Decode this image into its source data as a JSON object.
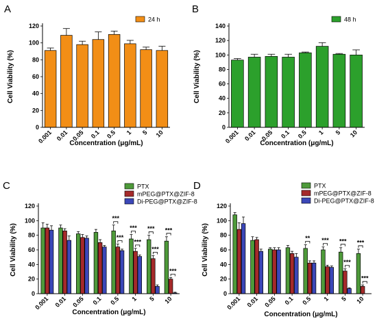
{
  "chart_data": [
    {
      "panel": "A",
      "type": "bar",
      "ylabel": "Cell Viability (%)",
      "xlabel": "Concentration (μg/mL)",
      "ylim": [
        0,
        120
      ],
      "yticks": [
        0,
        20,
        40,
        60,
        80,
        100,
        120
      ],
      "categories": [
        "0.001",
        "0.01",
        "0.05",
        "0.1",
        "0.5",
        "1",
        "5",
        "10"
      ],
      "series": [
        {
          "name": "24 h",
          "color": "#F28E16",
          "values": [
            91,
            109,
            98,
            104,
            110,
            99,
            92,
            91
          ],
          "errors": [
            3,
            8,
            4,
            9,
            4,
            4,
            3,
            5
          ]
        }
      ],
      "legend_position": "top-right",
      "significance": []
    },
    {
      "panel": "B",
      "type": "bar",
      "ylabel": "Cell Viability (%)",
      "xlabel": "Concentration (μg/mL)",
      "ylim": [
        0,
        140
      ],
      "yticks": [
        0,
        20,
        40,
        60,
        80,
        100,
        120,
        140
      ],
      "categories": [
        "0.001",
        "0.01",
        "0.05",
        "0.1",
        "0.5",
        "1",
        "5",
        "10"
      ],
      "series": [
        {
          "name": "48 h",
          "color": "#2CA02C",
          "values": [
            93,
            97,
            98,
            97,
            103,
            112,
            101,
            100
          ],
          "errors": [
            2,
            4,
            3,
            4,
            1,
            5,
            1,
            7
          ]
        }
      ],
      "legend_position": "top-right",
      "significance": []
    },
    {
      "panel": "C",
      "type": "bar",
      "ylabel": "Cell Viability (%)",
      "xlabel": "Concentration (μg/mL)",
      "ylim": [
        0,
        120
      ],
      "yticks": [
        0,
        20,
        40,
        60,
        80,
        100,
        120
      ],
      "categories": [
        "0.001",
        "0.01",
        "0.05",
        "0.1",
        "0.5",
        "1",
        "5",
        "10"
      ],
      "series": [
        {
          "name": "PTX",
          "color": "#4E9A3A",
          "values": [
            90,
            90,
            82,
            84,
            86,
            75,
            74,
            72
          ],
          "errors": [
            7,
            4,
            3,
            4,
            8,
            6,
            6,
            6
          ]
        },
        {
          "name": "mPEG@PTX@ZIF-8",
          "color": "#A52A2A",
          "values": [
            90,
            86,
            77,
            70,
            64,
            58,
            48,
            20
          ],
          "errors": [
            5,
            3,
            4,
            4,
            4,
            4,
            4,
            2
          ]
        },
        {
          "name": "Di-PEG@PTX@ZIF-8",
          "color": "#3B47B8",
          "values": [
            87,
            73,
            76,
            64,
            59,
            51,
            10,
            1
          ],
          "errors": [
            6,
            6,
            3,
            2,
            2,
            2,
            2,
            1
          ]
        }
      ],
      "legend_position": "top-right",
      "significance": [
        {
          "category": 4,
          "from": 0,
          "to": 1,
          "label": "***"
        },
        {
          "category": 4,
          "from": 1,
          "to": 2,
          "label": "***"
        },
        {
          "category": 5,
          "from": 0,
          "to": 1,
          "label": "***"
        },
        {
          "category": 5,
          "from": 1,
          "to": 2,
          "label": "***"
        },
        {
          "category": 6,
          "from": 0,
          "to": 1,
          "label": "***"
        },
        {
          "category": 6,
          "from": 1,
          "to": 2,
          "label": "***"
        },
        {
          "category": 7,
          "from": 0,
          "to": 1,
          "label": "***"
        },
        {
          "category": 7,
          "from": 1,
          "to": 2,
          "label": "***"
        }
      ]
    },
    {
      "panel": "D",
      "type": "bar",
      "ylabel": "Cell Viability (%)",
      "xlabel": "Concentration (μg/mL)",
      "ylim": [
        0,
        120
      ],
      "yticks": [
        0,
        20,
        40,
        60,
        80,
        100,
        120
      ],
      "categories": [
        "0.001",
        "0.01",
        "0.05",
        "0.1",
        "0.5",
        "1",
        "5",
        "10"
      ],
      "series": [
        {
          "name": "PTX",
          "color": "#4E9A3A",
          "values": [
            108,
            73,
            61,
            63,
            62,
            60,
            57,
            55
          ],
          "errors": [
            3,
            5,
            2,
            3,
            5,
            4,
            6,
            6
          ]
        },
        {
          "name": "mPEG@PTX@ZIF-8",
          "color": "#A52A2A",
          "values": [
            88,
            74,
            60,
            55,
            42,
            37,
            31,
            10
          ],
          "errors": [
            9,
            3,
            3,
            3,
            3,
            2,
            3,
            2
          ]
        },
        {
          "name": "Di-PEG@PTX@ZIF-8",
          "color": "#3B47B8",
          "values": [
            96,
            58,
            60,
            50,
            42,
            36,
            7,
            0
          ],
          "errors": [
            9,
            3,
            3,
            5,
            3,
            2,
            1,
            0
          ]
        }
      ],
      "legend_position": "top-right",
      "significance": [
        {
          "category": 4,
          "from": 0,
          "to": 1,
          "label": "**"
        },
        {
          "category": 5,
          "from": 0,
          "to": 1,
          "label": "***"
        },
        {
          "category": 6,
          "from": 0,
          "to": 1,
          "label": "***"
        },
        {
          "category": 6,
          "from": 1,
          "to": 2,
          "label": "***"
        },
        {
          "category": 7,
          "from": 0,
          "to": 1,
          "label": "***"
        },
        {
          "category": 7,
          "from": 1,
          "to": 2,
          "label": "***"
        }
      ]
    }
  ]
}
